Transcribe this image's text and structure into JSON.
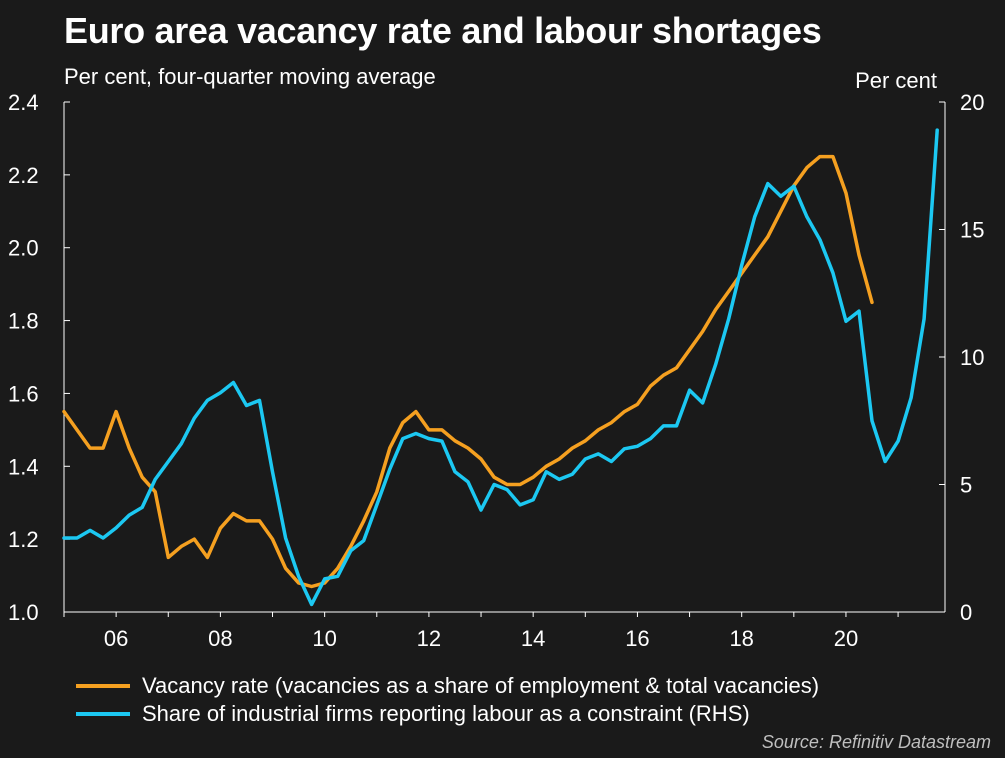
{
  "title": "Euro area vacancy rate and labour shortages",
  "subtitle": "Per cent, four-quarter moving average",
  "source": "Source: Refinitiv Datastream",
  "colors": {
    "background": "#1a1a1a",
    "vacancy": "#f5a020",
    "constraint": "#1cc8f2"
  },
  "chart_data": {
    "type": "line",
    "x_axis": {
      "range": [
        2005,
        2021.9
      ],
      "ticks": [
        2006,
        2008,
        2010,
        2012,
        2014,
        2016,
        2018,
        2020
      ],
      "tick_labels": [
        "06",
        "08",
        "10",
        "12",
        "14",
        "16",
        "18",
        "20"
      ]
    },
    "y_left": {
      "range": [
        1.0,
        2.4
      ],
      "ticks": [
        "1.0",
        "1.2",
        "1.4",
        "1.6",
        "1.8",
        "2.0",
        "2.2",
        "2.4"
      ]
    },
    "y_right": {
      "label": "Per cent",
      "range": [
        0,
        20
      ],
      "ticks": [
        "0",
        "5",
        "10",
        "15",
        "20"
      ]
    },
    "grid": false,
    "legend_position": "bottom",
    "series": [
      {
        "name": "Vacancy rate (vacancies as a share of employment & total vacancies)",
        "axis": "left",
        "x": [
          2005.0,
          2005.25,
          2005.5,
          2005.75,
          2006.0,
          2006.25,
          2006.5,
          2006.75,
          2007.0,
          2007.25,
          2007.5,
          2007.75,
          2008.0,
          2008.25,
          2008.5,
          2008.75,
          2009.0,
          2009.25,
          2009.5,
          2009.75,
          2010.0,
          2010.25,
          2010.5,
          2010.75,
          2011.0,
          2011.25,
          2011.5,
          2011.75,
          2012.0,
          2012.25,
          2012.5,
          2012.75,
          2013.0,
          2013.25,
          2013.5,
          2013.75,
          2014.0,
          2014.25,
          2014.5,
          2014.75,
          2015.0,
          2015.25,
          2015.5,
          2015.75,
          2016.0,
          2016.25,
          2016.5,
          2016.75,
          2017.0,
          2017.25,
          2017.5,
          2017.75,
          2018.0,
          2018.25,
          2018.5,
          2018.75,
          2019.0,
          2019.25,
          2019.5,
          2019.75,
          2020.0,
          2020.25,
          2020.5
        ],
        "values": [
          1.55,
          1.5,
          1.45,
          1.45,
          1.55,
          1.45,
          1.37,
          1.33,
          1.15,
          1.18,
          1.2,
          1.15,
          1.23,
          1.27,
          1.25,
          1.25,
          1.2,
          1.12,
          1.08,
          1.07,
          1.08,
          1.12,
          1.18,
          1.25,
          1.33,
          1.45,
          1.52,
          1.55,
          1.5,
          1.5,
          1.47,
          1.45,
          1.42,
          1.37,
          1.35,
          1.35,
          1.37,
          1.4,
          1.42,
          1.45,
          1.47,
          1.5,
          1.52,
          1.55,
          1.57,
          1.62,
          1.65,
          1.67,
          1.72,
          1.77,
          1.83,
          1.88,
          1.93,
          1.98,
          2.03,
          2.1,
          2.17,
          2.22,
          2.25,
          2.25,
          2.15,
          1.98,
          1.85
        ]
      },
      {
        "name": "Share of industrial firms reporting labour as a constraint (RHS)",
        "axis": "right",
        "x": [
          2005.0,
          2005.25,
          2005.5,
          2005.75,
          2006.0,
          2006.25,
          2006.5,
          2006.75,
          2007.0,
          2007.25,
          2007.5,
          2007.75,
          2008.0,
          2008.25,
          2008.5,
          2008.75,
          2009.0,
          2009.25,
          2009.5,
          2009.75,
          2010.0,
          2010.25,
          2010.5,
          2010.75,
          2011.0,
          2011.25,
          2011.5,
          2011.75,
          2012.0,
          2012.25,
          2012.5,
          2012.75,
          2013.0,
          2013.25,
          2013.5,
          2013.75,
          2014.0,
          2014.25,
          2014.5,
          2014.75,
          2015.0,
          2015.25,
          2015.5,
          2015.75,
          2016.0,
          2016.25,
          2016.5,
          2016.75,
          2017.0,
          2017.25,
          2017.5,
          2017.75,
          2018.0,
          2018.25,
          2018.5,
          2018.75,
          2019.0,
          2019.25,
          2019.5,
          2019.75,
          2020.0,
          2020.25,
          2020.5,
          2020.75,
          2021.0,
          2021.25,
          2021.5,
          2021.75
        ],
        "values": [
          2.9,
          2.9,
          3.2,
          2.9,
          3.3,
          3.8,
          4.1,
          5.2,
          5.9,
          6.6,
          7.6,
          8.3,
          8.6,
          9.0,
          8.1,
          8.3,
          5.5,
          2.9,
          1.4,
          0.3,
          1.3,
          1.4,
          2.4,
          2.8,
          4.2,
          5.6,
          6.8,
          7.0,
          6.8,
          6.7,
          5.5,
          5.1,
          4.0,
          5.0,
          4.8,
          4.2,
          4.4,
          5.5,
          5.2,
          5.4,
          6.0,
          6.2,
          5.9,
          6.4,
          6.5,
          6.8,
          7.3,
          7.3,
          8.7,
          8.2,
          9.7,
          11.5,
          13.6,
          15.5,
          16.8,
          16.3,
          16.7,
          15.5,
          14.6,
          13.3,
          11.4,
          11.8,
          7.5,
          5.9,
          6.7,
          8.4,
          11.5,
          18.9
        ]
      }
    ]
  }
}
